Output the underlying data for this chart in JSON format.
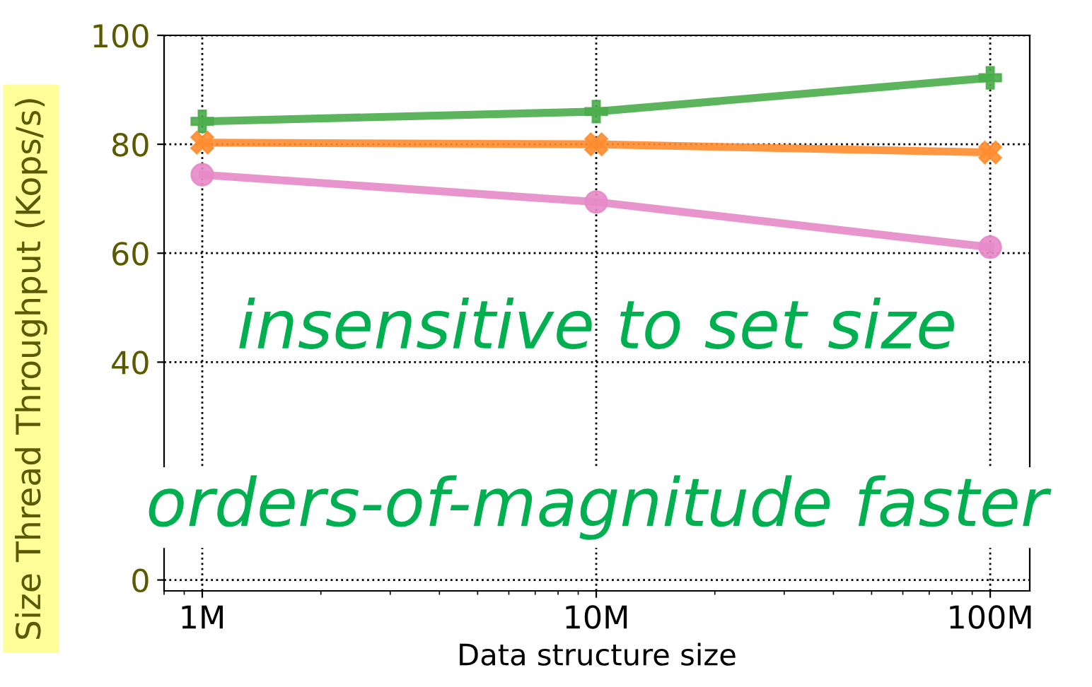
{
  "chart_data": {
    "type": "line",
    "xlabel": "Data structure size",
    "ylabel": "Size Thread Throughput (Kops/s)",
    "x": [
      1000000,
      10000000,
      100000000
    ],
    "series": [
      {
        "color": "#4aad4a",
        "marker": "plus",
        "values": [
          84.2,
          86,
          92.2
        ]
      },
      {
        "color": "#ff8c2e",
        "marker": "cross",
        "values": [
          80.3,
          80,
          78.5
        ]
      },
      {
        "color": "#e78ac8",
        "marker": "circle",
        "values": [
          74.4,
          69.4,
          61.1
        ]
      }
    ],
    "log": "x",
    "xlim": [
      800000,
      126000000
    ],
    "xticks": [
      {
        "value": 1000000,
        "label": "1M"
      },
      {
        "value": 10000000,
        "label": "10M"
      },
      {
        "value": 100000000,
        "label": "100M"
      }
    ],
    "ylim": [
      -2,
      100
    ],
    "yticks": [
      0,
      40,
      60,
      80,
      100
    ],
    "grid": true,
    "line_style": "solid",
    "annotations": [
      "insensitive to set size",
      "orders-of-magnitude faster"
    ]
  }
}
